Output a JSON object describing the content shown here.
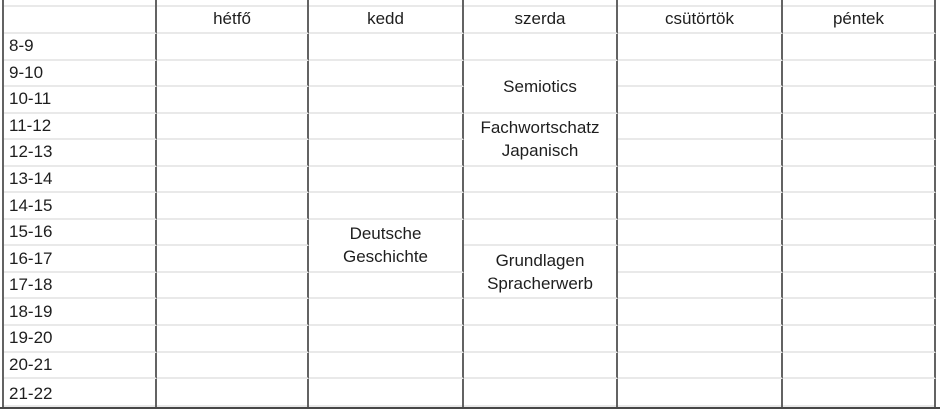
{
  "timetable": {
    "days": [
      "hétfő",
      "kedd",
      "szerda",
      "csütörtök",
      "péntek"
    ],
    "time_slots": [
      "8-9",
      "9-10",
      "10-11",
      "11-12",
      "12-13",
      "13-14",
      "14-15",
      "15-16",
      "16-17",
      "17-18",
      "18-19",
      "19-20",
      "20-21",
      "21-22"
    ],
    "events": [
      {
        "title_lines": [
          "Semiotics"
        ],
        "day": "szerda",
        "day_index": 2,
        "start_slot": "9-10",
        "start_index": 1,
        "row_span": 2
      },
      {
        "title_lines": [
          "Fachwortschatz",
          "Japanisch"
        ],
        "day": "szerda",
        "day_index": 2,
        "start_slot": "11-12",
        "start_index": 3,
        "row_span": 2
      },
      {
        "title_lines": [
          "Deutsche",
          "Geschichte"
        ],
        "day": "kedd",
        "day_index": 1,
        "start_slot": "15-16",
        "start_index": 7,
        "row_span": 2
      },
      {
        "title_lines": [
          "Grundlagen",
          "Spracherwerb"
        ],
        "day": "szerda",
        "day_index": 2,
        "start_slot": "16-17",
        "start_index": 8,
        "row_span": 2
      }
    ],
    "colors": {
      "vertical_gridline": "#636363",
      "horizontal_gridline": "#e9e9e9",
      "bottom_border": "#474747",
      "text": "#1e1e1e",
      "background": "#ffffff"
    }
  }
}
